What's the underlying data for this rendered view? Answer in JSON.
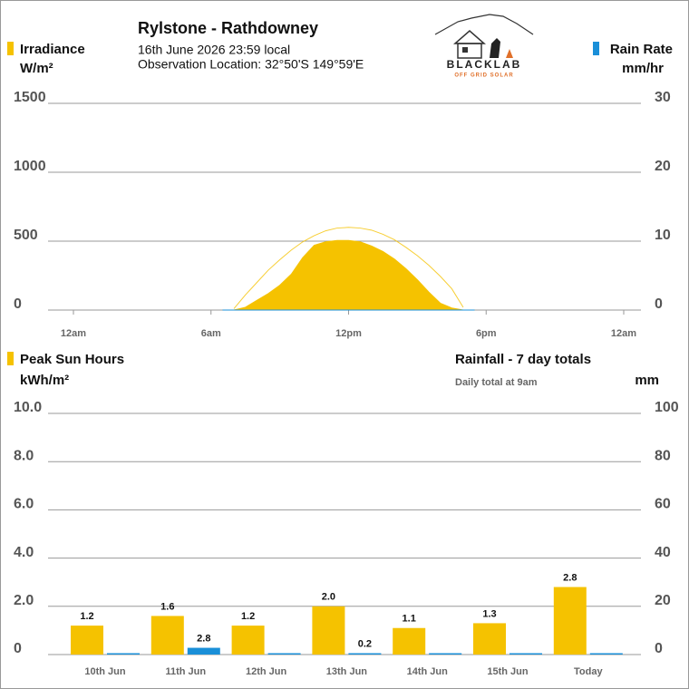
{
  "header": {
    "title": "Rylstone - Rathdowney",
    "date": "16th June 2026  23:59 local",
    "location": "Observation Location: 32°50'S 149°59'E"
  },
  "logo": {
    "name": "BLACKLAB",
    "tagline": "OFF GRID SOLAR"
  },
  "chart_data": [
    {
      "type": "area",
      "xlim": [
        0,
        24
      ],
      "xticks": [
        {
          "value": 0,
          "label": "12am"
        },
        {
          "value": 6,
          "label": "6am"
        },
        {
          "value": 12,
          "label": "12pm"
        },
        {
          "value": 18,
          "label": "6pm"
        },
        {
          "value": 24,
          "label": "12am"
        }
      ],
      "ylim": [
        0,
        1500
      ],
      "yticks": [
        0,
        500,
        1000,
        1500
      ],
      "y_unit": "W/m²",
      "y2lim": [
        0,
        30
      ],
      "y2ticks": [
        0,
        10,
        20,
        30
      ],
      "y2_unit": "mm/hr",
      "grid": true,
      "x": [
        6.5,
        7,
        7.5,
        8,
        8.5,
        9,
        9.5,
        10,
        10.5,
        11,
        11.5,
        12,
        12.5,
        13,
        13.5,
        14,
        14.5,
        15,
        15.5,
        16,
        16.5,
        17,
        17.5
      ],
      "series": [
        {
          "name": "Irradiance",
          "color": "#f5c200",
          "style": "area",
          "values": [
            0,
            0,
            20,
            70,
            120,
            180,
            260,
            380,
            470,
            495,
            505,
            505,
            495,
            465,
            425,
            370,
            300,
            220,
            130,
            50,
            15,
            0,
            0
          ]
        },
        {
          "color": "#f5c200",
          "style": "line",
          "values": [
            null,
            10,
            110,
            200,
            290,
            365,
            435,
            495,
            540,
            575,
            595,
            600,
            595,
            580,
            550,
            510,
            455,
            395,
            325,
            245,
            155,
            20,
            null
          ]
        },
        {
          "name": "Rain Rate",
          "color": "#1a8fd8",
          "style": "area",
          "axis": "y2",
          "values": [
            0,
            0,
            0,
            0,
            0,
            0,
            0,
            0,
            0,
            0,
            0,
            0,
            0,
            0,
            0,
            0,
            0,
            0,
            0,
            0,
            0,
            0,
            0
          ]
        }
      ]
    },
    {
      "type": "bar",
      "title": "Rainfall - 7 day totals",
      "subtitle": "Daily total at 9am",
      "categories": [
        "10th Jun",
        "11th Jun",
        "12th Jun",
        "13th Jun",
        "14th Jun",
        "15th Jun",
        "Today"
      ],
      "ylim": [
        0,
        10
      ],
      "yticks": [
        0,
        {
          "value": 2,
          "label": "2.0"
        },
        {
          "value": 4,
          "label": "4.0"
        },
        {
          "value": 6,
          "label": "6.0"
        },
        {
          "value": 8,
          "label": "8.0"
        },
        {
          "value": 10,
          "label": "10.0"
        }
      ],
      "y_unit": "kWh/m²",
      "y2lim": [
        0,
        100
      ],
      "y2ticks": [
        0,
        20,
        40,
        60,
        80,
        100
      ],
      "y2_unit": "mm",
      "grid": true,
      "series": [
        {
          "name": "Peak Sun Hours",
          "color": "#f5c200",
          "values": [
            1.2,
            1.6,
            1.2,
            2.0,
            1.1,
            1.3,
            2.8
          ],
          "value_labels": [
            "1.2",
            "1.6",
            "1.2",
            "2.0",
            "1.1",
            "1.3",
            "2.8"
          ]
        },
        {
          "color": "#1a8fd8",
          "axis": "y2",
          "values": [
            0,
            2.8,
            0,
            0.2,
            0,
            0,
            0
          ],
          "value_labels": [
            null,
            "2.8",
            null,
            "0.2",
            null,
            null,
            null
          ]
        }
      ]
    }
  ]
}
